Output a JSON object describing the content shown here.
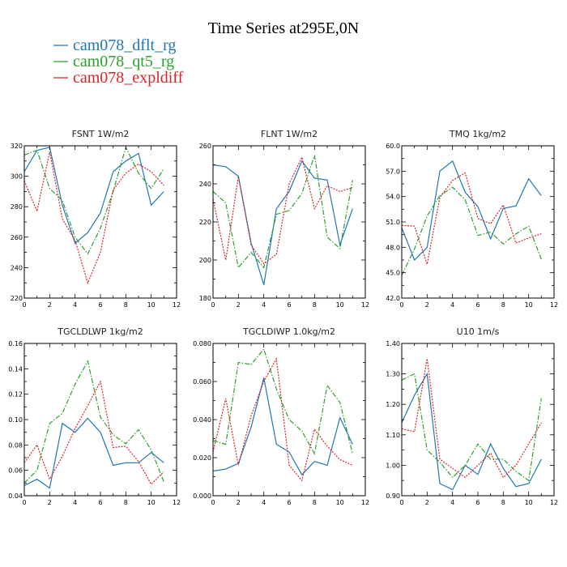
{
  "figure": {
    "title": "Time Series at295E,0N",
    "legend": [
      {
        "label": "cam078_dflt_rg",
        "color": "#1f77b4",
        "dash": "solid"
      },
      {
        "label": "cam078_qt5_rg",
        "color": "#2ca02c",
        "dash": "dashdot"
      },
      {
        "label": "cam078_expldiff",
        "color": "#d62728",
        "dash": "dotted"
      }
    ]
  },
  "chart_data": [
    {
      "type": "line",
      "title": "FSNT   1W/m2",
      "xlim": [
        0,
        12
      ],
      "ylim": [
        220,
        320
      ],
      "xticks": [
        0,
        2,
        4,
        6,
        8,
        10,
        12
      ],
      "yticks": [
        220,
        240,
        260,
        280,
        300,
        320
      ],
      "ytick_labels": [
        "220",
        "240",
        "260",
        "280",
        "300",
        "320"
      ],
      "x": [
        0,
        1,
        2,
        3,
        4,
        5,
        6,
        7,
        8,
        9,
        10,
        11
      ],
      "series": [
        {
          "name": "cam078_dflt_rg",
          "values": [
            303,
            317,
            319,
            281,
            256,
            263,
            276,
            303,
            310,
            315,
            281,
            290
          ]
        },
        {
          "name": "cam078_qt5_rg",
          "values": [
            314,
            317,
            292,
            284,
            260,
            249,
            266,
            290,
            319,
            302,
            292,
            305
          ]
        },
        {
          "name": "cam078_expldiff",
          "values": [
            297,
            277,
            316,
            272,
            258,
            230,
            250,
            291,
            302,
            308,
            303,
            294
          ]
        }
      ]
    },
    {
      "type": "line",
      "title": "FLNT   1W/m2",
      "xlim": [
        0,
        12
      ],
      "ylim": [
        180,
        260
      ],
      "xticks": [
        0,
        2,
        4,
        6,
        8,
        10,
        12
      ],
      "yticks": [
        180,
        200,
        220,
        240,
        260
      ],
      "ytick_labels": [
        "180",
        "200",
        "220",
        "240",
        "260"
      ],
      "x": [
        0,
        1,
        2,
        3,
        4,
        5,
        6,
        7,
        8,
        9,
        10,
        11
      ],
      "series": [
        {
          "name": "cam078_dflt_rg",
          "values": [
            250,
            249,
            244,
            209,
            187,
            227,
            236,
            252,
            243,
            242,
            208,
            227
          ]
        },
        {
          "name": "cam078_qt5_rg",
          "values": [
            236,
            230,
            196,
            204,
            196,
            224,
            226,
            235,
            255,
            212,
            206,
            242
          ]
        },
        {
          "name": "cam078_expldiff",
          "values": [
            232,
            200,
            244,
            208,
            198,
            203,
            240,
            254,
            227,
            239,
            236,
            238
          ]
        }
      ]
    },
    {
      "type": "line",
      "title": "TMQ   1kg/m2",
      "xlim": [
        0,
        12
      ],
      "ylim": [
        42,
        60
      ],
      "xticks": [
        0,
        2,
        4,
        6,
        8,
        10,
        12
      ],
      "yticks": [
        42,
        45,
        48,
        51,
        54,
        57,
        60
      ],
      "ytick_labels": [
        "42.0",
        "45.0",
        "48.0",
        "51.0",
        "54.0",
        "57.0",
        "60.0"
      ],
      "x": [
        0,
        1,
        2,
        3,
        4,
        5,
        6,
        7,
        8,
        9,
        10,
        11
      ],
      "series": [
        {
          "name": "cam078_dflt_rg",
          "values": [
            50.3,
            46.5,
            48.0,
            57.0,
            58.2,
            54.5,
            52.8,
            49.0,
            52.6,
            52.9,
            56.1,
            54.1
          ]
        },
        {
          "name": "cam078_qt5_rg",
          "values": [
            44.7,
            47.8,
            51.7,
            54.1,
            55.1,
            53.6,
            49.4,
            49.8,
            48.4,
            49.6,
            50.5,
            46.6
          ]
        },
        {
          "name": "cam078_expldiff",
          "values": [
            50.6,
            50.5,
            46.0,
            53.9,
            55.9,
            56.8,
            51.4,
            50.8,
            53.0,
            48.5,
            49.1,
            49.6
          ]
        }
      ]
    },
    {
      "type": "line",
      "title": "TGCLDLWP   1kg/m2",
      "xlim": [
        0,
        12
      ],
      "ylim": [
        0.04,
        0.16
      ],
      "xticks": [
        0,
        2,
        4,
        6,
        8,
        10,
        12
      ],
      "yticks": [
        0.04,
        0.06,
        0.08,
        0.1,
        0.12,
        0.14,
        0.16
      ],
      "ytick_labels": [
        "0.04",
        "0.06",
        "0.08",
        "0.10",
        "0.12",
        "0.14",
        "0.16"
      ],
      "x": [
        0,
        1,
        2,
        3,
        4,
        5,
        6,
        7,
        8,
        9,
        10,
        11
      ],
      "series": [
        {
          "name": "cam078_dflt_rg",
          "values": [
            0.048,
            0.053,
            0.046,
            0.097,
            0.09,
            0.101,
            0.09,
            0.064,
            0.066,
            0.066,
            0.074,
            0.066
          ]
        },
        {
          "name": "cam078_qt5_rg",
          "values": [
            0.05,
            0.06,
            0.097,
            0.105,
            0.128,
            0.146,
            0.102,
            0.088,
            0.081,
            0.092,
            0.076,
            0.051
          ]
        },
        {
          "name": "cam078_expldiff",
          "values": [
            0.066,
            0.08,
            0.053,
            0.071,
            0.093,
            0.111,
            0.13,
            0.078,
            0.079,
            0.067,
            0.049,
            0.059
          ]
        }
      ]
    },
    {
      "type": "line",
      "title": "TGCLDIWP   1.0kg/m2",
      "xlim": [
        0,
        12
      ],
      "ylim": [
        0,
        0.08
      ],
      "xticks": [
        0,
        2,
        4,
        6,
        8,
        10,
        12
      ],
      "yticks": [
        0,
        0.02,
        0.04,
        0.06,
        0.08
      ],
      "ytick_labels": [
        "0.000",
        "0.020",
        "0.040",
        "0.060",
        "0.080"
      ],
      "x": [
        0,
        1,
        2,
        3,
        4,
        5,
        6,
        7,
        8,
        9,
        10,
        11
      ],
      "series": [
        {
          "name": "cam078_dflt_rg",
          "values": [
            0.013,
            0.014,
            0.017,
            0.036,
            0.062,
            0.027,
            0.023,
            0.011,
            0.018,
            0.016,
            0.041,
            0.027
          ]
        },
        {
          "name": "cam078_qt5_rg",
          "values": [
            0.029,
            0.027,
            0.07,
            0.069,
            0.077,
            0.056,
            0.04,
            0.034,
            0.022,
            0.058,
            0.049,
            0.022
          ]
        },
        {
          "name": "cam078_expldiff",
          "values": [
            0.023,
            0.051,
            0.016,
            0.042,
            0.06,
            0.072,
            0.016,
            0.008,
            0.035,
            0.026,
            0.019,
            0.016
          ]
        }
      ]
    },
    {
      "type": "line",
      "title": "U10   1m/s",
      "xlim": [
        0,
        12
      ],
      "ylim": [
        0.9,
        1.4
      ],
      "xticks": [
        0,
        2,
        4,
        6,
        8,
        10,
        12
      ],
      "yticks": [
        0.9,
        1.0,
        1.1,
        1.2,
        1.3,
        1.4
      ],
      "ytick_labels": [
        "0.90",
        "1.00",
        "1.10",
        "1.20",
        "1.30",
        "1.40"
      ],
      "x": [
        0,
        1,
        2,
        3,
        4,
        5,
        6,
        7,
        8,
        9,
        10,
        11
      ],
      "series": [
        {
          "name": "cam078_dflt_rg",
          "values": [
            1.14,
            1.23,
            1.3,
            0.94,
            0.92,
            1.0,
            0.97,
            1.07,
            0.99,
            0.93,
            0.94,
            1.02
          ]
        },
        {
          "name": "cam078_qt5_rg",
          "values": [
            1.28,
            1.3,
            1.05,
            1.01,
            0.96,
            1.0,
            1.07,
            1.02,
            1.02,
            0.98,
            0.95,
            1.22
          ]
        },
        {
          "name": "cam078_expldiff",
          "values": [
            1.12,
            1.11,
            1.35,
            1.02,
            0.99,
            0.96,
            1.0,
            1.04,
            0.96,
            1.0,
            1.07,
            1.14
          ]
        }
      ]
    }
  ]
}
